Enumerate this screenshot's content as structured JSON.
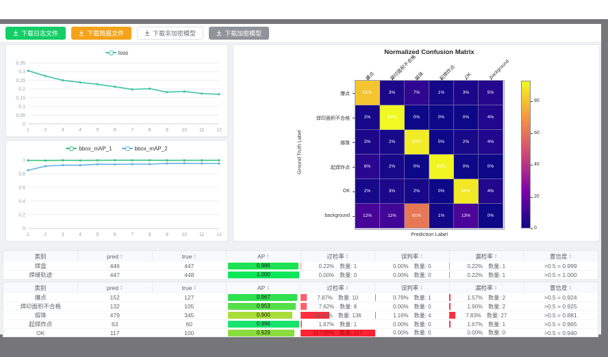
{
  "toolbar": {
    "buttons": [
      {
        "name": "download-log-button",
        "label": "下载日志文件",
        "style": "green"
      },
      {
        "name": "download-report-button",
        "label": "下载简报文件",
        "style": "orange"
      },
      {
        "name": "download-unencrypted-model-button",
        "label": "下载非加密模型",
        "style": "plain"
      },
      {
        "name": "download-encrypted-model-button",
        "label": "下载加密模型",
        "style": "gray"
      }
    ]
  },
  "chart_data": [
    {
      "id": "loss",
      "type": "line",
      "legend": [
        "loss"
      ],
      "x": [
        1,
        2,
        3,
        4,
        5,
        6,
        7,
        8,
        9,
        10,
        11,
        12
      ],
      "series": [
        {
          "name": "loss",
          "color": "#3fc3a7",
          "values": [
            0.305,
            0.275,
            0.25,
            0.238,
            0.227,
            0.213,
            0.198,
            0.202,
            0.182,
            0.186,
            0.174,
            0.17
          ]
        }
      ],
      "yticks": [
        0,
        0.05,
        0.1,
        0.15,
        0.2,
        0.25,
        0.3,
        0.35
      ],
      "ylim": [
        0,
        0.35
      ],
      "grid": true,
      "legend_position": "top"
    },
    {
      "id": "map",
      "type": "line",
      "legend": [
        "bbox_mAP_1",
        "bbox_mAP_2"
      ],
      "x": [
        1,
        2,
        3,
        4,
        5,
        6,
        7,
        8,
        9,
        10,
        11,
        12
      ],
      "series": [
        {
          "name": "bbox_mAP_1",
          "color": "#35c17b",
          "values": [
            0.995,
            0.993,
            0.996,
            0.994,
            0.996,
            0.997,
            0.997,
            0.997,
            0.996,
            0.996,
            0.996,
            0.996
          ]
        },
        {
          "name": "bbox_mAP_2",
          "color": "#5fb0e6",
          "values": [
            0.85,
            0.91,
            0.925,
            0.924,
            0.938,
            0.937,
            0.94,
            0.94,
            0.95,
            0.952,
            0.95,
            0.95
          ]
        }
      ],
      "yticks": [
        0,
        0.2,
        0.4,
        0.6,
        0.8,
        1
      ],
      "ylim": [
        0,
        1
      ],
      "grid": true,
      "legend_position": "top"
    },
    {
      "id": "confusion",
      "type": "heatmap",
      "title": "Normalized Confusion Matrix",
      "xlabel": "Prediction Label",
      "ylabel": "Ground Truth Label",
      "labels": [
        "爆点",
        "焊印面积不合格",
        "熔珠",
        "起焊炸点",
        "OK",
        "background"
      ],
      "matrix_percent": [
        [
          81,
          3,
          7,
          1,
          3,
          5
        ],
        [
          2,
          93,
          0,
          0,
          0,
          4
        ],
        [
          3,
          2,
          90,
          0,
          2,
          4
        ],
        [
          6,
          2,
          0,
          92,
          0,
          0
        ],
        [
          2,
          3,
          2,
          0,
          89,
          4
        ],
        [
          12,
          11,
          61,
          1,
          13,
          0
        ]
      ],
      "vmax": 93,
      "colorbar_ticks": [
        0,
        20,
        40,
        60,
        80
      ],
      "colormap": "plasma"
    }
  ],
  "tables": {
    "columns": [
      {
        "label": "类别",
        "sortable": false
      },
      {
        "label": "pred",
        "sortable": true
      },
      {
        "label": "true",
        "sortable": true
      },
      {
        "label": "AP",
        "sortable": true
      },
      {
        "label": "过检率",
        "sortable": true
      },
      {
        "label": "误判率",
        "sortable": true
      },
      {
        "label": "漏检率",
        "sortable": true
      },
      {
        "label": "置信度",
        "sortable": true
      }
    ],
    "table1": {
      "rows": [
        {
          "name": "焊盘",
          "pred": "446",
          "true": "447",
          "ap": "0.986",
          "ap_bar": 98.6,
          "ap_color": "#1ee254",
          "overkill": {
            "pct": "0.22%",
            "count": "数量: 1",
            "bar": 1,
            "bar_color": "#ff7e8e"
          },
          "misjudge": {
            "pct": "0.00%",
            "count": "数量: 0",
            "bar": 0,
            "bar_color": "#ff7e8e"
          },
          "miss": {
            "pct": "0.22%",
            "count": "数量: 1",
            "bar": 1,
            "bar_color": "#ff7e8e"
          },
          "confidence": ">0.5 = 0.999"
        },
        {
          "name": "焊缝轨迹",
          "pred": "447",
          "true": "448",
          "ap": "1.000",
          "ap_bar": 100,
          "ap_color": "#0ce65a",
          "overkill": {
            "pct": "0.00%",
            "count": "数量: 0",
            "bar": 0,
            "bar_color": "#ff7e8e"
          },
          "misjudge": {
            "pct": "0.00%",
            "count": "数量: 0",
            "bar": 0,
            "bar_color": "#ff7e8e"
          },
          "miss": {
            "pct": "0.22%",
            "count": "数量: 1",
            "bar": 1,
            "bar_color": "#ff7e8e"
          },
          "confidence": ">0.5 = 1.000"
        }
      ]
    },
    "table2": {
      "rows": [
        {
          "name": "爆点",
          "pred": "152",
          "true": "127",
          "ap": "0.967",
          "ap_bar": 96.7,
          "ap_color": "#2fe04e",
          "overkill": {
            "pct": "7.87%",
            "count": "数量: 10",
            "bar": 8,
            "bar_color": "#ff5f6d"
          },
          "misjudge": {
            "pct": "0.79%",
            "count": "数量: 1",
            "bar": 1,
            "bar_color": "#ff5f6d"
          },
          "miss": {
            "pct": "1.57%",
            "count": "数量: 2",
            "bar": 2,
            "bar_color": "#ff3344"
          },
          "confidence": ">0.5 = 0.924"
        },
        {
          "name": "焊印面积不合格",
          "pred": "132",
          "true": "105",
          "ap": "0.953",
          "ap_bar": 95.3,
          "ap_color": "#55df49",
          "overkill": {
            "pct": "7.62%",
            "count": "数量: 8",
            "bar": 8,
            "bar_color": "#ff5f6d"
          },
          "misjudge": {
            "pct": "0.00%",
            "count": "数量: 0",
            "bar": 0,
            "bar_color": "#ff5f6d"
          },
          "miss": {
            "pct": "1.90%",
            "count": "数量: 2",
            "bar": 2,
            "bar_color": "#ff3344"
          },
          "confidence": ">0.5 = 0.925"
        },
        {
          "name": "熔珠",
          "pred": "479",
          "true": "345",
          "ap": "0.900",
          "ap_bar": 90,
          "ap_color": "#a8dd3a",
          "overkill": {
            "pct": "39.42%",
            "count": "数量: 136",
            "bar": 39,
            "bar_color": "#ff2e3e"
          },
          "misjudge": {
            "pct": "1.16%",
            "count": "数量: 4",
            "bar": 1.5,
            "bar_color": "#ff5f6d"
          },
          "miss": {
            "pct": "7.83%",
            "count": "数量: 27",
            "bar": 8,
            "bar_color": "#ff2e3e"
          },
          "confidence": ">0.5 = 0.881"
        },
        {
          "name": "起焊炸点",
          "pred": "63",
          "true": "60",
          "ap": "0.996",
          "ap_bar": 99.6,
          "ap_color": "#17e36e",
          "overkill": {
            "pct": "1.67%",
            "count": "数量: 1",
            "bar": 2,
            "bar_color": "#ff5f6d"
          },
          "misjudge": {
            "pct": "0.00%",
            "count": "数量: 0",
            "bar": 0,
            "bar_color": "#ff5f6d"
          },
          "miss": {
            "pct": "1.67%",
            "count": "数量: 1",
            "bar": 2,
            "bar_color": "#ff3344"
          },
          "confidence": ">0.5 = 0.965"
        },
        {
          "name": "OK",
          "pred": "117",
          "true": "100",
          "ap": "0.929",
          "ap_bar": 92.9,
          "ap_color": "#8bdd3f",
          "overkill": {
            "pct": "117.00%",
            "count": "数量: 117",
            "bar": 100,
            "bar_color": "#ff2230",
            "text_color": "#9e0c18"
          },
          "misjudge": {
            "pct": "0.00%",
            "count": "数量: 0",
            "bar": 0,
            "bar_color": "#ff5f6d"
          },
          "miss": {
            "pct": "0.00%",
            "count": "数量: 0",
            "bar": 0,
            "bar_color": "#ff3344"
          },
          "confidence": ">0.5 = 0.940"
        }
      ]
    }
  }
}
